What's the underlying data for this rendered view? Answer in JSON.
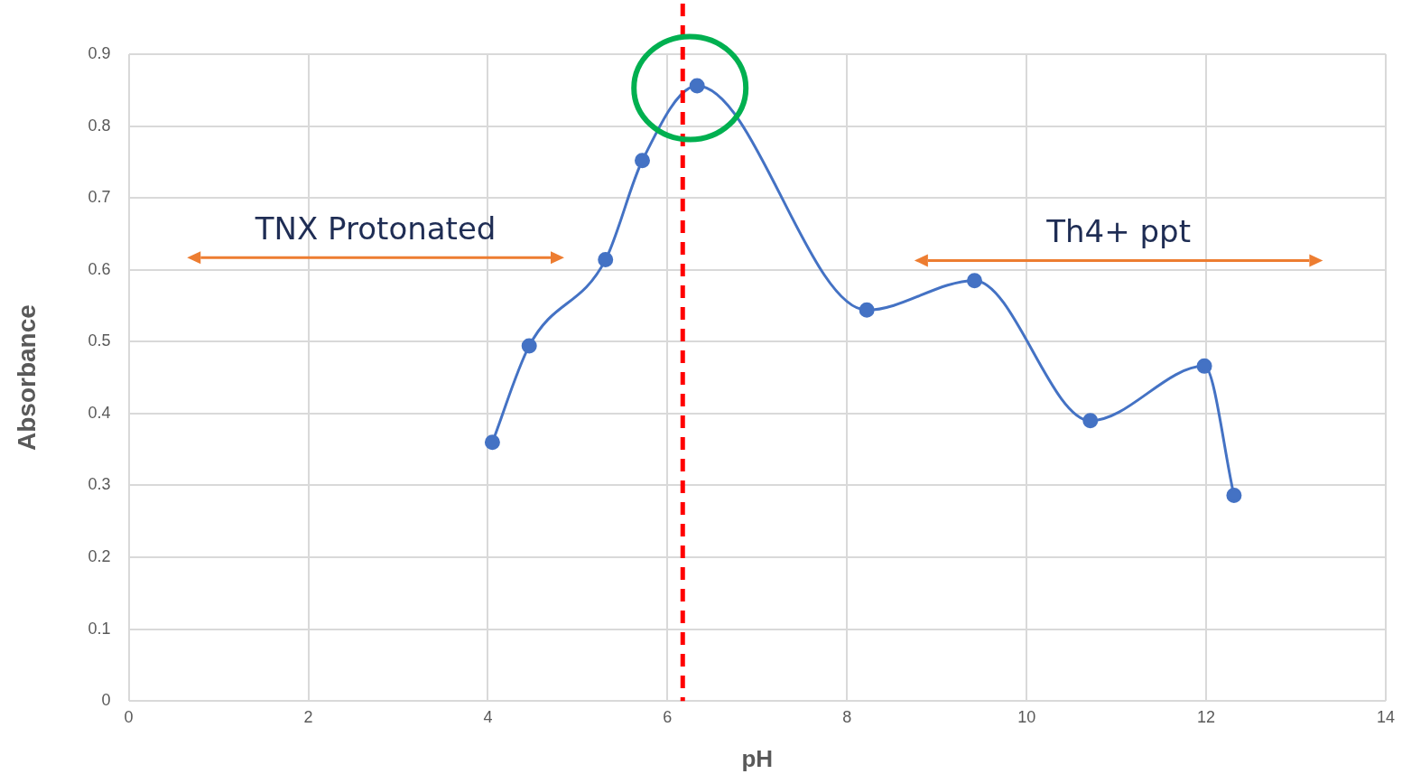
{
  "chart_data": {
    "type": "line",
    "xlabel": "pH",
    "ylabel": "Absorbance",
    "x": [
      4.05,
      4.46,
      5.31,
      5.72,
      6.33,
      8.22,
      9.42,
      10.71,
      11.98,
      12.31
    ],
    "series": [
      {
        "color": "#4472c4",
        "values": [
          0.36,
          0.494,
          0.614,
          0.752,
          0.856,
          0.544,
          0.585,
          0.39,
          0.466,
          0.286
        ]
      }
    ],
    "xlim": [
      0,
      14
    ],
    "xticks": [
      0,
      2,
      4,
      6,
      8,
      10,
      12,
      14
    ],
    "ylim": [
      0,
      0.9
    ],
    "yticks": [
      0,
      0.1,
      0.2,
      0.3,
      0.4,
      0.5,
      0.6,
      0.7,
      0.8,
      0.9
    ],
    "grid": true,
    "legend": false,
    "marker": "circle",
    "line_style": "solid",
    "ref_lines": [
      {
        "axis": "x",
        "value": 6.17,
        "color": "#ff0000",
        "line_style": "dashed"
      }
    ],
    "annotations": [
      "TNX Protonated",
      "Th4+ ppt"
    ]
  }
}
